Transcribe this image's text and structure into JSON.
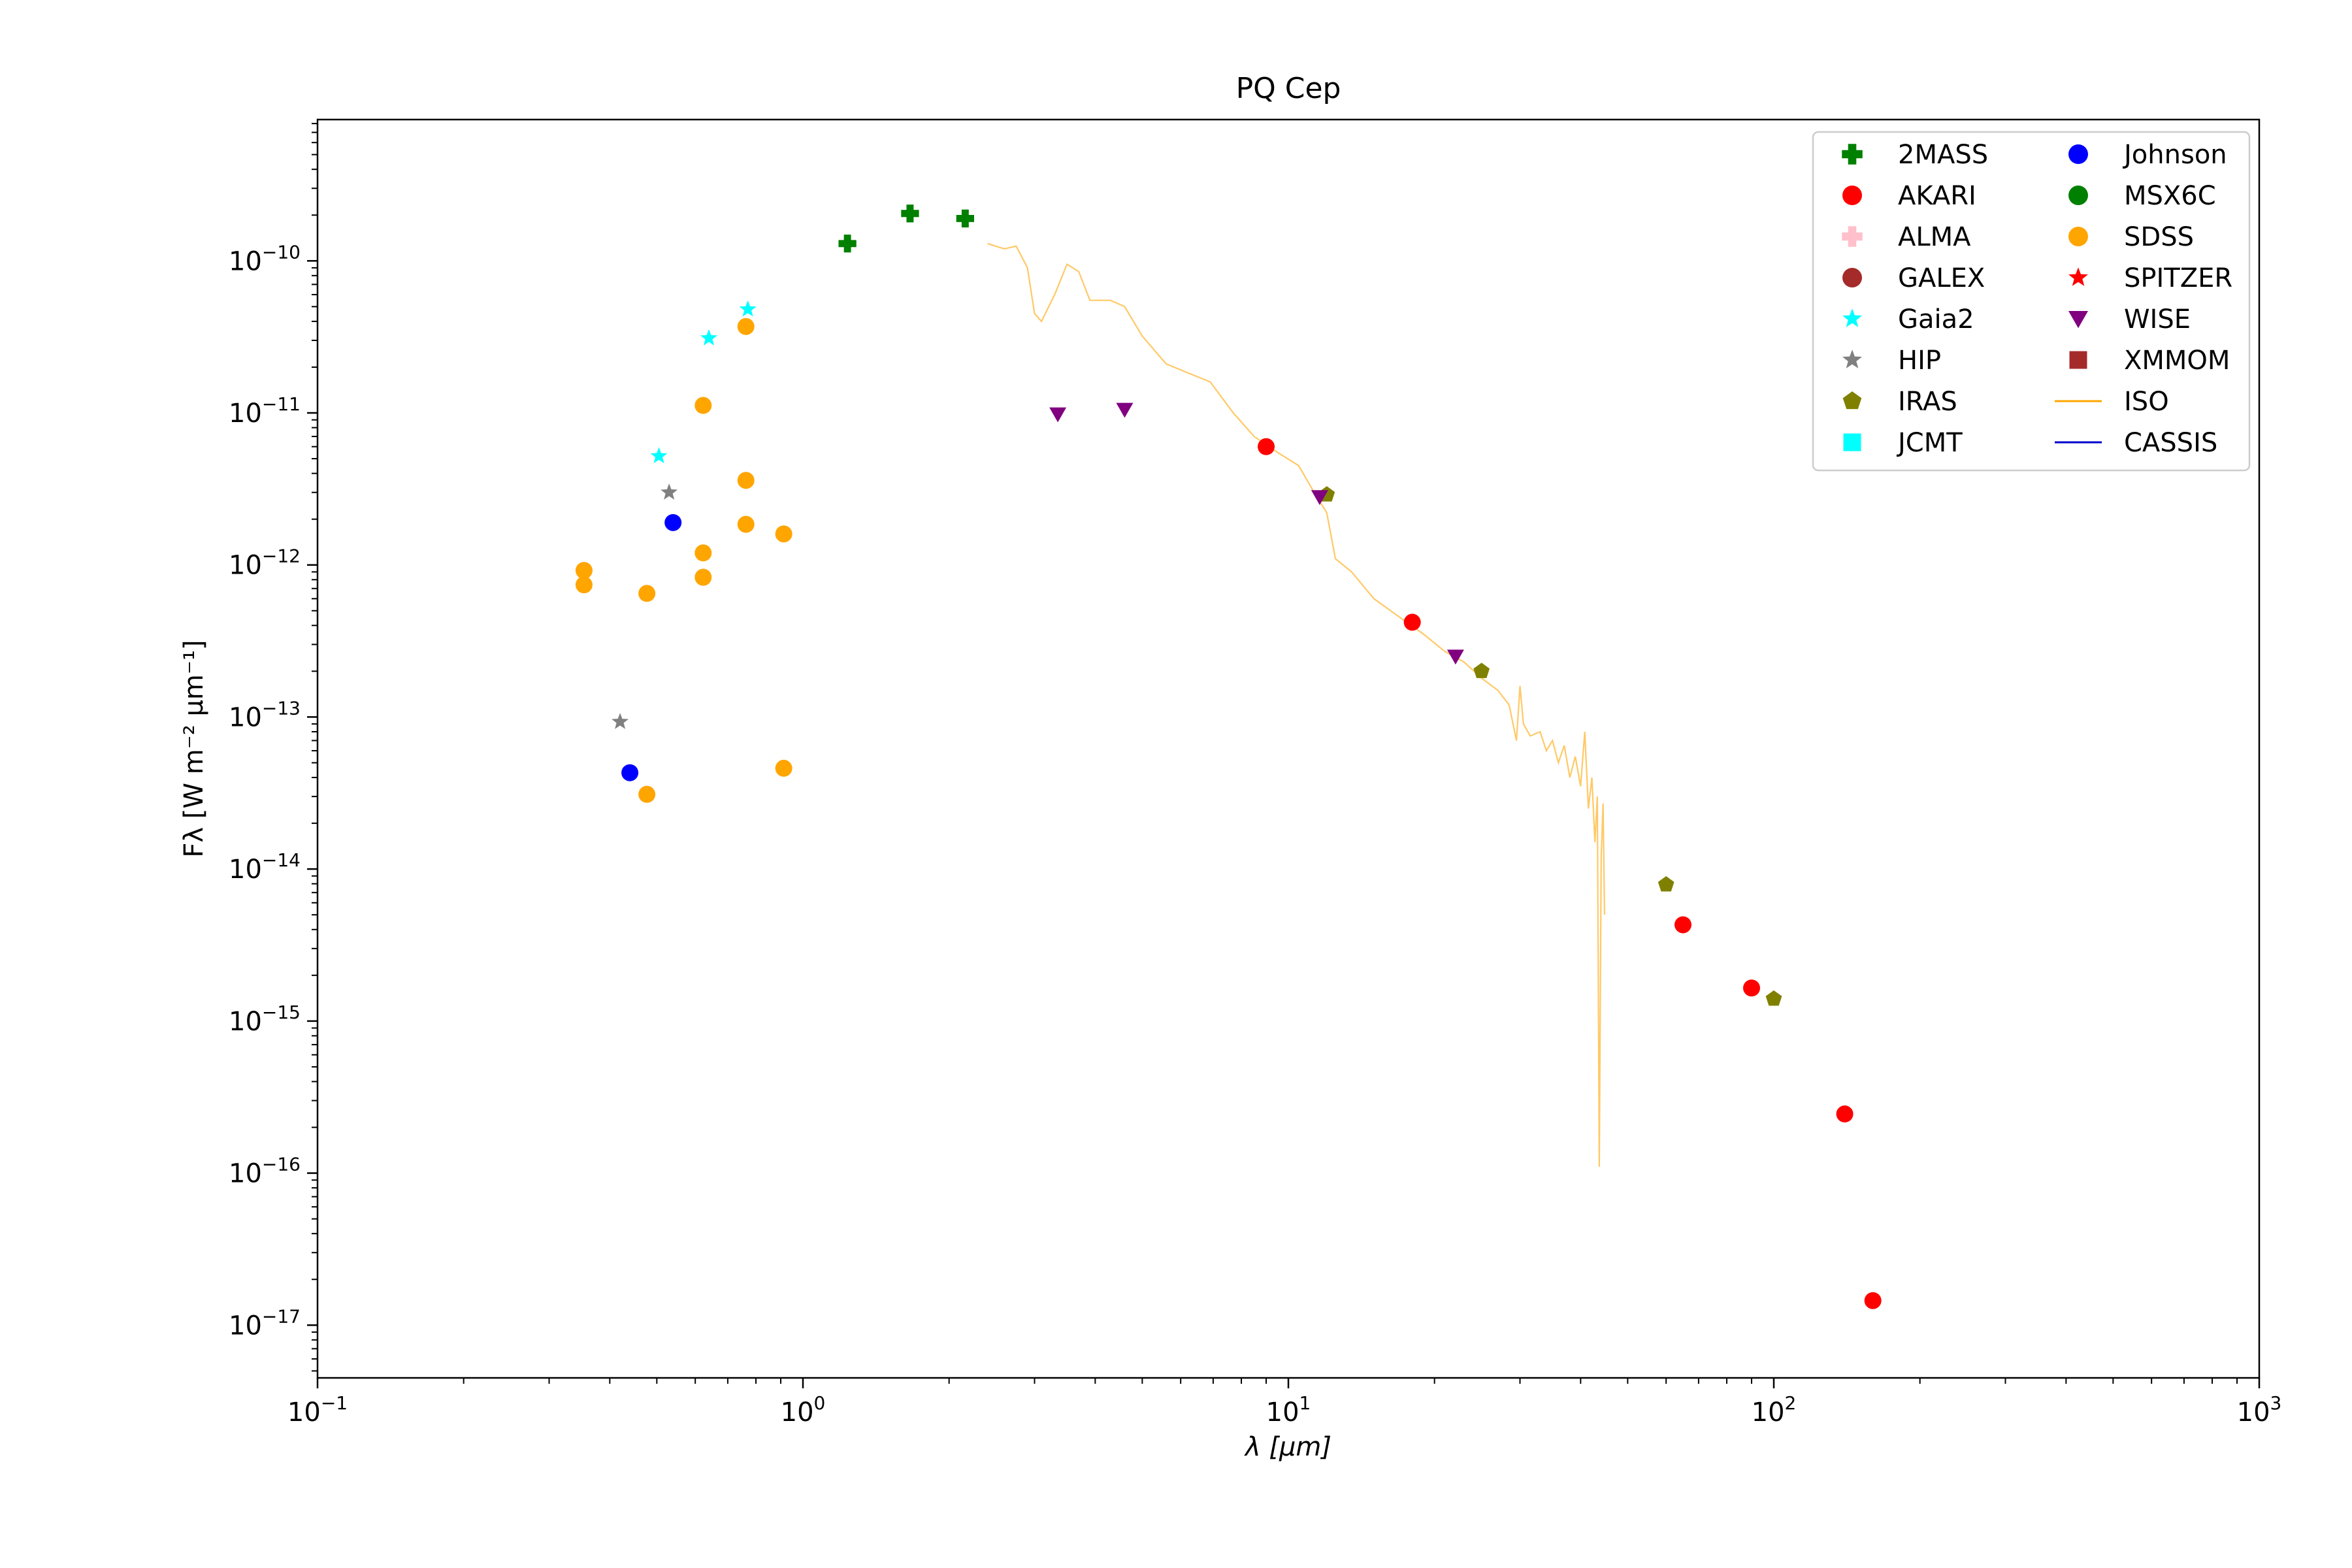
{
  "chart_data": {
    "type": "scatter",
    "title": "PQ Cep",
    "xlabel": "λ [μm]",
    "ylabel": "Fλ [W m⁻² μm⁻¹]",
    "xscale": "log",
    "yscale": "log",
    "xlim": [
      0.1,
      1000
    ],
    "ylim": [
      4.5e-18,
      8.5e-10
    ],
    "grid": false,
    "legend_position": "top-right",
    "x_ticks": [
      {
        "value": 0.1,
        "base": "10",
        "exp": "−1"
      },
      {
        "value": 1,
        "base": "10",
        "exp": "0"
      },
      {
        "value": 10,
        "base": "10",
        "exp": "1"
      },
      {
        "value": 100,
        "base": "10",
        "exp": "2"
      },
      {
        "value": 1000,
        "base": "10",
        "exp": "3"
      }
    ],
    "y_ticks": [
      {
        "value": 1e-17,
        "base": "10",
        "exp": "−17"
      },
      {
        "value": 1e-16,
        "base": "10",
        "exp": "−16"
      },
      {
        "value": 1e-15,
        "base": "10",
        "exp": "−15"
      },
      {
        "value": 1e-14,
        "base": "10",
        "exp": "−14"
      },
      {
        "value": 1e-13,
        "base": "10",
        "exp": "−13"
      },
      {
        "value": 1e-12,
        "base": "10",
        "exp": "−12"
      },
      {
        "value": 1e-11,
        "base": "10",
        "exp": "−11"
      },
      {
        "value": 1e-10,
        "base": "10",
        "exp": "−10"
      }
    ],
    "series": [
      {
        "name": "2MASS",
        "marker": "plus",
        "color": "#008000",
        "points": [
          [
            1.235,
            1.3e-10
          ],
          [
            1.662,
            2.05e-10
          ],
          [
            2.159,
            1.9e-10
          ]
        ]
      },
      {
        "name": "AKARI",
        "marker": "circle",
        "color": "#ff0000",
        "points": [
          [
            9,
            6e-12
          ],
          [
            18,
            4.2e-13
          ],
          [
            65,
            4.3e-15
          ],
          [
            90,
            1.65e-15
          ],
          [
            140,
            2.45e-16
          ],
          [
            160,
            1.45e-17
          ]
        ]
      },
      {
        "name": "ALMA",
        "marker": "plus",
        "color": "#ffc0cb",
        "points": []
      },
      {
        "name": "GALEX",
        "marker": "circle",
        "color": "#a52a2a",
        "points": []
      },
      {
        "name": "Gaia2",
        "marker": "star",
        "color": "#00ffff",
        "points": [
          [
            0.505,
            5.2e-12
          ],
          [
            0.64,
            3.1e-11
          ],
          [
            0.77,
            4.8e-11
          ]
        ]
      },
      {
        "name": "HIP",
        "marker": "star",
        "color": "#808080",
        "points": [
          [
            0.42,
            9.3e-14
          ],
          [
            0.53,
            3e-12
          ]
        ]
      },
      {
        "name": "IRAS",
        "marker": "pentagon",
        "color": "#808000",
        "points": [
          [
            12,
            2.9e-12
          ],
          [
            25,
            2e-13
          ],
          [
            60,
            7.9e-15
          ],
          [
            100,
            1.4e-15
          ]
        ]
      },
      {
        "name": "JCMT",
        "marker": "square",
        "color": "#00ffff",
        "points": []
      },
      {
        "name": "Johnson",
        "marker": "circle",
        "color": "#0000ff",
        "points": [
          [
            0.44,
            4.3e-14
          ],
          [
            0.54,
            1.9e-12
          ]
        ]
      },
      {
        "name": "MSX6C",
        "marker": "circle",
        "color": "#008000",
        "points": []
      },
      {
        "name": "SDSS",
        "marker": "circle",
        "color": "#ffa500",
        "points": [
          [
            0.354,
            9.2e-13
          ],
          [
            0.354,
            7.4e-13
          ],
          [
            0.477,
            6.5e-13
          ],
          [
            0.477,
            3.1e-14
          ],
          [
            0.623,
            1.12e-11
          ],
          [
            0.623,
            1.2e-12
          ],
          [
            0.623,
            8.3e-13
          ],
          [
            0.763,
            3.7e-11
          ],
          [
            0.763,
            3.6e-12
          ],
          [
            0.763,
            1.85e-12
          ],
          [
            0.913,
            1.6e-12
          ],
          [
            0.913,
            4.6e-14
          ]
        ]
      },
      {
        "name": "SPITZER",
        "marker": "star",
        "color": "#ff0000",
        "points": []
      },
      {
        "name": "WISE",
        "marker": "triangle-down",
        "color": "#800080",
        "points": [
          [
            3.35,
            9.8e-12
          ],
          [
            4.6,
            1.05e-11
          ],
          [
            11.6,
            2.8e-12
          ],
          [
            22.1,
            2.5e-13
          ]
        ]
      },
      {
        "name": "XMMOM",
        "marker": "square",
        "color": "#a52a2a",
        "points": []
      },
      {
        "name": "ISO",
        "marker": "line",
        "color": "#ffa500",
        "line": [
          [
            2.4,
            1.3e-10
          ],
          [
            2.6,
            1.2e-10
          ],
          [
            2.75,
            1.25e-10
          ],
          [
            2.9,
            9e-11
          ],
          [
            3.0,
            4.5e-11
          ],
          [
            3.1,
            4e-11
          ],
          [
            3.3,
            6e-11
          ],
          [
            3.5,
            9.5e-11
          ],
          [
            3.7,
            8.5e-11
          ],
          [
            3.9,
            5.5e-11
          ],
          [
            4.3,
            5.5e-11
          ],
          [
            4.6,
            5e-11
          ],
          [
            5.0,
            3.2e-11
          ],
          [
            5.6,
            2.1e-11
          ],
          [
            6.3,
            1.8e-11
          ],
          [
            6.9,
            1.6e-11
          ],
          [
            7.7,
            1e-11
          ],
          [
            8.5,
            7e-12
          ],
          [
            9.5,
            5.5e-12
          ],
          [
            10.5,
            4.5e-12
          ],
          [
            11.3,
            3e-12
          ],
          [
            12.0,
            2.2e-12
          ],
          [
            12.5,
            1.1e-12
          ],
          [
            13.5,
            9e-13
          ],
          [
            15,
            6e-13
          ],
          [
            17,
            4.5e-13
          ],
          [
            19,
            3.5e-13
          ],
          [
            21,
            2.7e-13
          ],
          [
            23,
            2.3e-13
          ],
          [
            25,
            1.8e-13
          ],
          [
            27,
            1.5e-13
          ],
          [
            28.5,
            1.2e-13
          ],
          [
            29.5,
            7e-14
          ],
          [
            30.0,
            1.6e-13
          ],
          [
            30.5,
            9e-14
          ],
          [
            31.5,
            7.5e-14
          ],
          [
            33,
            8e-14
          ],
          [
            34,
            6e-14
          ],
          [
            35,
            7e-14
          ],
          [
            36,
            5e-14
          ],
          [
            37,
            6.5e-14
          ],
          [
            38,
            4e-14
          ],
          [
            39,
            5.5e-14
          ],
          [
            40,
            3.5e-14
          ],
          [
            40.8,
            8e-14
          ],
          [
            41.5,
            2.5e-14
          ],
          [
            42.2,
            4e-14
          ],
          [
            42.8,
            1.5e-14
          ],
          [
            43.3,
            3e-14
          ],
          [
            43.7,
            1.1e-16
          ],
          [
            44.1,
            1.2e-14
          ],
          [
            44.5,
            2.7e-14
          ],
          [
            44.8,
            5e-15
          ]
        ]
      },
      {
        "name": "CASSIS",
        "marker": "line",
        "color": "#0000cd",
        "line": []
      }
    ]
  }
}
